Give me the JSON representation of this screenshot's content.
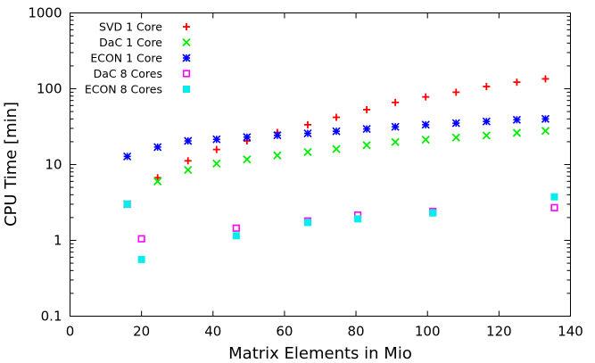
{
  "chart_data": {
    "type": "scatter",
    "xlabel": "Matrix Elements in Mio",
    "ylabel": "CPU Time [min]",
    "xlim": [
      0,
      140
    ],
    "ylim": [
      0.1,
      1000
    ],
    "yscale": "log",
    "x_ticks": [
      0,
      20,
      40,
      60,
      80,
      100,
      120,
      140
    ],
    "x_tick_labels": [
      "0",
      "20",
      "40",
      "60",
      "80",
      "100",
      "120",
      "140"
    ],
    "y_ticks": [
      0.1,
      1,
      10,
      100,
      1000
    ],
    "y_tick_labels": [
      "0.1",
      "1",
      "10",
      "100",
      "1000"
    ],
    "legend_position": "top-left",
    "series": [
      {
        "name": "SVD 1 Core",
        "marker": "plus",
        "color": "#ff0000",
        "x": [
          16,
          24.5,
          33,
          41,
          49.5,
          58,
          66.5,
          74.5,
          83,
          91,
          99.5,
          108,
          116.5,
          125,
          133
        ],
        "y": [
          3.0,
          6.7,
          11.2,
          15.8,
          20.5,
          26.5,
          33.5,
          42,
          53,
          66,
          78,
          90,
          107,
          122,
          135
        ]
      },
      {
        "name": "DaC 1 Core",
        "marker": "cross",
        "color": "#00ee00",
        "x": [
          16,
          24.5,
          33,
          41,
          49.5,
          58,
          66.5,
          74.5,
          83,
          91,
          99.5,
          108,
          116.5,
          125,
          133
        ],
        "y": [
          3.0,
          6.0,
          8.5,
          10.3,
          11.7,
          13.2,
          14.6,
          16.0,
          18.0,
          19.8,
          21.3,
          22.7,
          24.2,
          26.2,
          27.8
        ]
      },
      {
        "name": "ECON 1 Core",
        "marker": "star",
        "color": "#0000ff",
        "x": [
          16,
          24.5,
          33,
          41,
          49.5,
          58,
          66.5,
          74.5,
          83,
          91,
          99.5,
          108,
          116.5,
          125,
          133
        ],
        "y": [
          12.8,
          17.0,
          20.5,
          21.5,
          23.0,
          24.3,
          25.8,
          27.5,
          29.5,
          31.5,
          33.5,
          35.2,
          37.0,
          39.0,
          40.0
        ]
      },
      {
        "name": "DaC 8 Cores",
        "marker": "open-square",
        "color": "#ff00ff",
        "x": [
          16,
          20,
          46.5,
          66.5,
          80.5,
          101.5,
          135.5
        ],
        "y": [
          3.0,
          1.05,
          1.45,
          1.8,
          2.15,
          2.4,
          2.7
        ]
      },
      {
        "name": "ECON 8 Cores",
        "marker": "filled-square",
        "color": "#00eeee",
        "x": [
          16,
          20,
          46.5,
          66.5,
          80.5,
          101.5,
          135.5
        ],
        "y": [
          3.0,
          0.56,
          1.15,
          1.72,
          1.92,
          2.3,
          3.75
        ]
      }
    ]
  }
}
